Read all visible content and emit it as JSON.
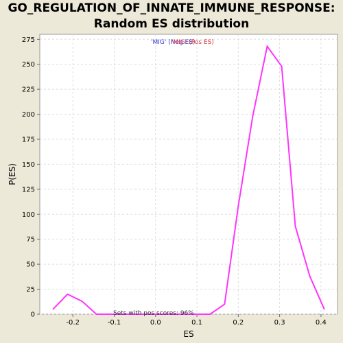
{
  "title_line1": "GO_REGULATION_OF_INNATE_IMMUNE_RESPONSE:",
  "title_line2": "Random ES distribution",
  "chart_data": {
    "type": "line",
    "xlabel": "ES",
    "ylabel": "P(ES)",
    "xlim": [
      -0.28,
      0.44
    ],
    "ylim": [
      0,
      280
    ],
    "xticks": [
      -0.2,
      -0.1,
      0.0,
      0.1,
      0.2,
      0.3,
      0.4
    ],
    "xtick_labels": [
      "-0.2",
      "-0.1",
      "0.0",
      "0.1",
      "0.2",
      "0.3",
      "0.4"
    ],
    "yticks": [
      0,
      25,
      50,
      75,
      100,
      125,
      150,
      175,
      200,
      225,
      250,
      275
    ],
    "ytick_labels": [
      "0",
      "25",
      "50",
      "75",
      "100",
      "125",
      "150",
      "175",
      "200",
      "225",
      "250",
      "275"
    ],
    "grid": true,
    "legend": [
      {
        "label": "'MIG' (Neg ES)",
        "color": "#3333cc"
      },
      {
        "label": "'MIG' (Pos ES)",
        "color": "#dd3333"
      }
    ],
    "annotation": "Sets with pos scores: 96%",
    "series": [
      {
        "color": "#ff33ff",
        "x": [
          -0.248,
          -0.213,
          -0.178,
          -0.143,
          -0.108,
          -0.073,
          -0.038,
          -0.003,
          0.032,
          0.067,
          0.102,
          0.132,
          0.167,
          0.2,
          0.235,
          0.27,
          0.305,
          0.338,
          0.373,
          0.408
        ],
        "y": [
          5,
          20,
          13,
          0,
          0,
          0,
          0,
          0,
          0,
          0,
          0,
          0,
          10,
          108,
          198,
          268,
          248,
          88,
          38,
          5
        ]
      }
    ]
  }
}
